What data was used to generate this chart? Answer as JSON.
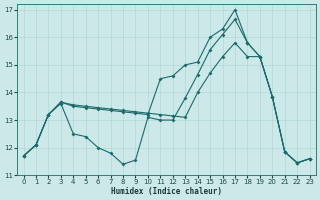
{
  "xlabel": "Humidex (Indice chaleur)",
  "background_color": "#cce8e8",
  "line_color": "#1a6b6b",
  "xlim": [
    -0.5,
    23.5
  ],
  "ylim": [
    11,
    17.2
  ],
  "xticks": [
    0,
    1,
    2,
    3,
    4,
    5,
    6,
    7,
    8,
    9,
    10,
    11,
    12,
    13,
    14,
    15,
    16,
    17,
    18,
    19,
    20,
    21,
    22,
    23
  ],
  "yticks": [
    11,
    12,
    13,
    14,
    15,
    16,
    17
  ],
  "line1_x": [
    0,
    1,
    2,
    3,
    4,
    5,
    6,
    7,
    8,
    9,
    10,
    11,
    12,
    13,
    14,
    15,
    16,
    17,
    18,
    19,
    20,
    21,
    22,
    23
  ],
  "line1_y": [
    11.7,
    12.1,
    13.2,
    13.6,
    12.5,
    12.4,
    12.0,
    11.8,
    11.4,
    11.55,
    13.1,
    13.0,
    13.0,
    13.8,
    14.65,
    15.55,
    16.1,
    16.65,
    15.8,
    15.3,
    13.85,
    11.85,
    11.45,
    11.6
  ],
  "line2_x": [
    0,
    1,
    2,
    3,
    4,
    5,
    6,
    7,
    8,
    9,
    10,
    11,
    12,
    13,
    14,
    15,
    16,
    17,
    18,
    19,
    20,
    21,
    22,
    23
  ],
  "line2_y": [
    11.7,
    12.1,
    13.2,
    13.65,
    13.5,
    13.45,
    13.4,
    13.35,
    13.3,
    13.25,
    13.2,
    14.5,
    14.6,
    15.0,
    15.1,
    16.0,
    16.3,
    17.0,
    15.8,
    15.3,
    13.85,
    11.85,
    11.45,
    11.6
  ],
  "line3_x": [
    0,
    1,
    2,
    3,
    4,
    5,
    6,
    7,
    8,
    9,
    10,
    11,
    12,
    13,
    14,
    15,
    16,
    17,
    18,
    19,
    20,
    21,
    22,
    23
  ],
  "line3_y": [
    11.7,
    12.1,
    13.2,
    13.65,
    13.55,
    13.5,
    13.45,
    13.4,
    13.35,
    13.3,
    13.25,
    13.2,
    13.15,
    13.1,
    14.0,
    14.7,
    15.3,
    15.8,
    15.3,
    15.3,
    13.85,
    11.85,
    11.45,
    11.6
  ],
  "figwidth": 3.2,
  "figheight": 2.0,
  "dpi": 100,
  "xlabel_fontsize": 5.5,
  "tick_fontsize": 5.0,
  "linewidth": 0.8,
  "markersize": 2.0,
  "grid_color": "#aad4d4",
  "grid_linewidth": 0.4
}
